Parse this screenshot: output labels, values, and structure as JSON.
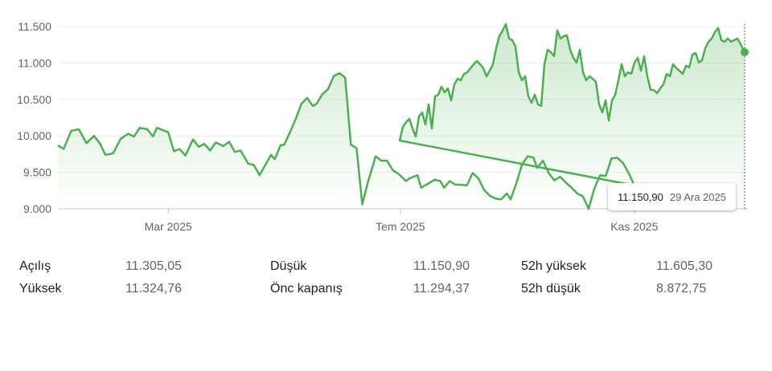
{
  "chart_data": {
    "type": "area",
    "y_ticks": [
      "11.500",
      "11.000",
      "10.500",
      "10.000",
      "9.500",
      "9.000"
    ],
    "y_tick_values": [
      11500,
      11000,
      10500,
      10000,
      9500,
      9000
    ],
    "ylim": [
      9000,
      11600
    ],
    "x_ticks": [
      "Mar 2025",
      "Tem 2025",
      "Kas 2025"
    ],
    "x_tick_dates": [
      "2025-03-01",
      "2025-07-01",
      "2025-11-01"
    ],
    "xlim": [
      "2025-01-02",
      "2025-12-29"
    ],
    "grid": "horizontal",
    "line_color": "#4caf50",
    "series": [
      {
        "points": [
          [
            "2025-01-02",
            9870
          ],
          [
            "2025-01-05",
            9820
          ],
          [
            "2025-01-09",
            10070
          ],
          [
            "2025-01-13",
            10090
          ],
          [
            "2025-01-17",
            9900
          ],
          [
            "2025-01-21",
            10000
          ],
          [
            "2025-01-24",
            9900
          ],
          [
            "2025-01-27",
            9740
          ],
          [
            "2025-01-31",
            9760
          ],
          [
            "2025-02-04",
            9960
          ],
          [
            "2025-02-08",
            10030
          ],
          [
            "2025-02-11",
            9990
          ],
          [
            "2025-02-14",
            10110
          ],
          [
            "2025-02-18",
            10090
          ],
          [
            "2025-02-21",
            9990
          ],
          [
            "2025-02-23",
            10110
          ],
          [
            "2025-02-27",
            10070
          ],
          [
            "2025-03-01",
            10050
          ],
          [
            "2025-03-04",
            9790
          ],
          [
            "2025-03-07",
            9820
          ],
          [
            "2025-03-10",
            9730
          ],
          [
            "2025-03-14",
            9950
          ],
          [
            "2025-03-17",
            9850
          ],
          [
            "2025-03-20",
            9890
          ],
          [
            "2025-03-23",
            9800
          ],
          [
            "2025-03-26",
            9910
          ],
          [
            "2025-03-30",
            9860
          ],
          [
            "2025-04-02",
            9920
          ],
          [
            "2025-04-05",
            9780
          ],
          [
            "2025-04-08",
            9800
          ],
          [
            "2025-04-12",
            9620
          ],
          [
            "2025-04-15",
            9600
          ],
          [
            "2025-04-18",
            9460
          ],
          [
            "2025-04-21",
            9600
          ],
          [
            "2025-04-24",
            9740
          ],
          [
            "2025-04-26",
            9680
          ],
          [
            "2025-04-29",
            9870
          ],
          [
            "2025-05-01",
            9880
          ],
          [
            "2025-05-04",
            10050
          ],
          [
            "2025-05-07",
            10230
          ],
          [
            "2025-05-10",
            10440
          ],
          [
            "2025-05-13",
            10520
          ],
          [
            "2025-05-16",
            10410
          ],
          [
            "2025-05-18",
            10440
          ],
          [
            "2025-05-21",
            10570
          ],
          [
            "2025-05-24",
            10640
          ],
          [
            "2025-05-27",
            10820
          ],
          [
            "2025-05-30",
            10860
          ],
          [
            "2025-06-02",
            10800
          ],
          [
            "2025-06-05",
            9880
          ],
          [
            "2025-06-08",
            9830
          ],
          [
            "2025-06-11",
            9060
          ],
          [
            "2025-06-14",
            9370
          ],
          [
            "2025-06-18",
            9720
          ],
          [
            "2025-06-21",
            9660
          ],
          [
            "2025-06-24",
            9660
          ],
          [
            "2025-06-27",
            9530
          ],
          [
            "2025-06-30",
            9480
          ],
          [
            "2025-07-04",
            9380
          ],
          [
            "2025-07-06",
            9420
          ],
          [
            "2025-07-10",
            9460
          ],
          [
            "2025-07-12",
            9290
          ],
          [
            "2025-07-16",
            9350
          ],
          [
            "2025-07-19",
            9400
          ],
          [
            "2025-07-22",
            9380
          ],
          [
            "2025-07-24",
            9290
          ],
          [
            "2025-07-27",
            9380
          ],
          [
            "2025-07-30",
            9330
          ],
          [
            "2025-08-02",
            9330
          ],
          [
            "2025-08-05",
            9320
          ],
          [
            "2025-08-08",
            9490
          ],
          [
            "2025-08-11",
            9420
          ],
          [
            "2025-08-14",
            9260
          ],
          [
            "2025-08-17",
            9180
          ],
          [
            "2025-08-20",
            9140
          ],
          [
            "2025-08-23",
            9130
          ],
          [
            "2025-08-26",
            9210
          ],
          [
            "2025-08-28",
            9130
          ],
          [
            "2025-08-31",
            9350
          ],
          [
            "2025-09-03",
            9610
          ],
          [
            "2025-09-06",
            9720
          ],
          [
            "2025-09-09",
            9700
          ],
          [
            "2025-09-11",
            9560
          ],
          [
            "2025-09-14",
            9660
          ],
          [
            "2025-09-17",
            9490
          ],
          [
            "2025-09-20",
            9390
          ],
          [
            "2025-09-23",
            9440
          ],
          [
            "2025-09-26",
            9360
          ],
          [
            "2025-09-29",
            9290
          ],
          [
            "2025-10-02",
            9210
          ],
          [
            "2025-10-05",
            9170
          ],
          [
            "2025-10-08",
            9000
          ],
          [
            "2025-10-11",
            9280
          ],
          [
            "2025-10-14",
            9460
          ],
          [
            "2025-10-17",
            9450
          ],
          [
            "2025-10-20",
            9690
          ],
          [
            "2025-10-23",
            9700
          ],
          [
            "2025-10-26",
            9630
          ],
          [
            "2025-10-29",
            9490
          ],
          [
            "2025-11-01",
            9320
          ]
        ]
      }
    ]
  },
  "tooltip": {
    "value": "11.150,90",
    "date": "29 Ara 2025"
  },
  "stats": {
    "rows": [
      [
        {
          "label": "Açılış",
          "value": "11.305,05"
        },
        {
          "label": "Düşük",
          "value": "11.150,90"
        },
        {
          "label": "52h yüksek",
          "value": "11.605,30"
        }
      ],
      [
        {
          "label": "Yüksek",
          "value": "11.324,76"
        },
        {
          "label": "Önc kapanış",
          "value": "11.294,37"
        },
        {
          "label": "52h düşük",
          "value": "8.872,75"
        }
      ]
    ]
  }
}
